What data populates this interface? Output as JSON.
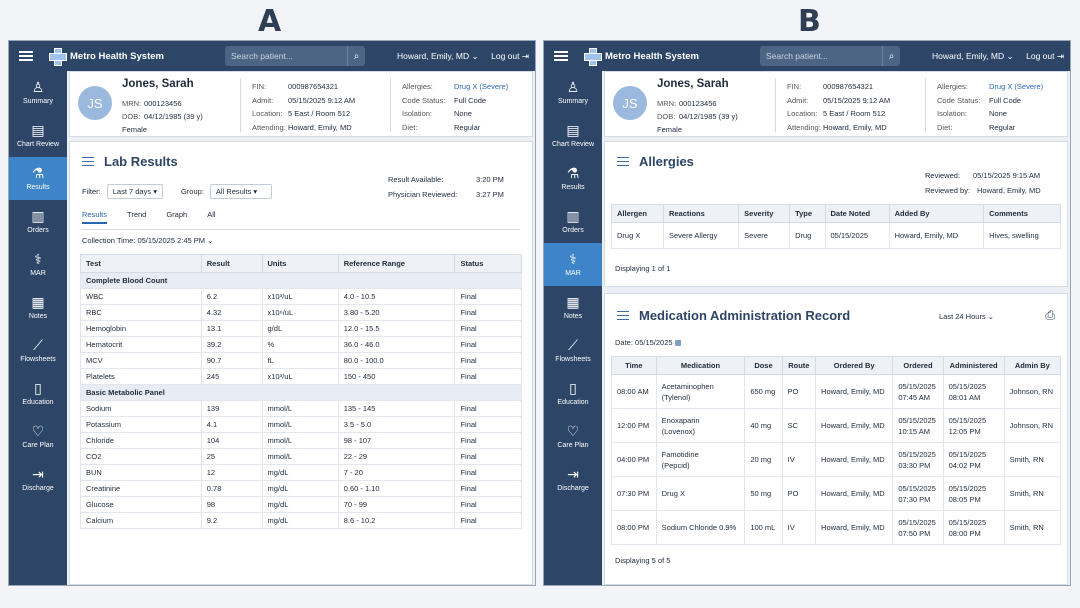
{
  "labels": {
    "a": "A",
    "b": "B"
  },
  "app": {
    "name": "Metro Health System",
    "search_placeholder": "Search patient...",
    "user": "Howard, Emily, MD",
    "logout": "Log out"
  },
  "nav": [
    {
      "label": "Summary",
      "icon": "person-icon"
    },
    {
      "label": "Chart Review",
      "icon": "document-icon"
    },
    {
      "label": "Results",
      "icon": "flask-icon"
    },
    {
      "label": "Orders",
      "icon": "clipboard-icon"
    },
    {
      "label": "MAR",
      "icon": "medication-icon"
    },
    {
      "label": "Notes",
      "icon": "note-icon"
    },
    {
      "label": "Flowsheets",
      "icon": "chart-line-icon"
    },
    {
      "label": "Education",
      "icon": "book-icon"
    },
    {
      "label": "Care Plan",
      "icon": "heart-icon"
    },
    {
      "label": "Discharge",
      "icon": "exit-icon"
    }
  ],
  "patient": {
    "initials": "JS",
    "name": "Jones, Sarah",
    "mrn_label": "MRN:",
    "mrn": "000123456",
    "dob_label": "DOB:",
    "dob": "04/12/1985 (39 y)",
    "sex": "Female",
    "fin_label": "FIN:",
    "fin": "000987654321",
    "admit_label": "Admit:",
    "admit": "05/15/2025 9:12 AM",
    "location_label": "Location:",
    "location": "5 East / Room 512",
    "attending_label": "Attending:",
    "attending": "Howard, Emily, MD",
    "allergies_label": "Allergies:",
    "allergies": "Drug X (Severe)",
    "code_label": "Code Status:",
    "code": "Full Code",
    "isolation_label": "Isolation:",
    "isolation": "None",
    "diet_label": "Diet:",
    "diet": "Regular"
  },
  "lab": {
    "title": "Lab Results",
    "filter_label": "Filter:",
    "filter_value": "Last 7 days",
    "group_label": "Group:",
    "group_value": "All Results",
    "result_available_label": "Result Available:",
    "result_available": "3:20 PM",
    "physician_reviewed_label": "Physician Reviewed:",
    "physician_reviewed": "3:27 PM",
    "tabs": [
      "Results",
      "Trend",
      "Graph",
      "All"
    ],
    "collection_label": "Collection Time:",
    "collection_value": "05/15/2025 2:45 PM",
    "headers": [
      "Test",
      "Result",
      "Units",
      "Reference Range",
      "Status"
    ],
    "groups": [
      {
        "name": "Complete Blood Count",
        "rows": [
          [
            "WBC",
            "6.2",
            "x10³/uL",
            "4.0 - 10.5",
            "Final"
          ],
          [
            "RBC",
            "4.32",
            "x10⁶/uL",
            "3.80 - 5.20",
            "Final"
          ],
          [
            "Hemoglobin",
            "13.1",
            "g/dL",
            "12.0 - 15.5",
            "Final"
          ],
          [
            "Hematocrit",
            "39.2",
            "%",
            "36.0 - 46.0",
            "Final"
          ],
          [
            "MCV",
            "90.7",
            "fL",
            "80.0 - 100.0",
            "Final"
          ],
          [
            "Platelets",
            "245",
            "x10³/uL",
            "150 - 450",
            "Final"
          ]
        ]
      },
      {
        "name": "Basic Metabolic Panel",
        "rows": [
          [
            "Sodium",
            "139",
            "mmol/L",
            "135 - 145",
            "Final"
          ],
          [
            "Potassium",
            "4.1",
            "mmol/L",
            "3.5 - 5.0",
            "Final"
          ],
          [
            "Chloride",
            "104",
            "mmol/L",
            "98 - 107",
            "Final"
          ],
          [
            "CO2",
            "25",
            "mmol/L",
            "22 - 29",
            "Final"
          ],
          [
            "BUN",
            "12",
            "mg/dL",
            "7 - 20",
            "Final"
          ],
          [
            "Creatinine",
            "0.78",
            "mg/dL",
            "0.60 - 1.10",
            "Final"
          ],
          [
            "Glucose",
            "98",
            "mg/dL",
            "70 - 99",
            "Final"
          ],
          [
            "Calcium",
            "9.2",
            "mg/dL",
            "8.6 - 10.2",
            "Final"
          ]
        ]
      }
    ]
  },
  "allergy": {
    "title": "Allergies",
    "reviewed_label": "Reviewed:",
    "reviewed": "05/15/2025 9:15 AM",
    "reviewed_by_label": "Reviewed by:",
    "reviewed_by": "Howard, Emily, MD",
    "headers": [
      "Allergen",
      "Reactions",
      "Severity",
      "Type",
      "Date Noted",
      "Added By",
      "Comments"
    ],
    "rows": [
      [
        "Drug X",
        "Severe Allergy",
        "Severe",
        "Drug",
        "05/15/2025",
        "Howard, Emily, MD",
        "Hives, swelling"
      ]
    ],
    "footer": "Displaying 1 of 1"
  },
  "mar": {
    "title": "Medication Administration Record",
    "range": "Last 24 Hours",
    "date_label": "Date:",
    "date": "05/15/2025",
    "headers": [
      "Time",
      "Medication",
      "Dose",
      "Route",
      "Ordered By",
      "Ordered",
      "Administered",
      "Admin By"
    ],
    "rows": [
      [
        "08:00 AM",
        "Acetaminophen\n(Tylenol)",
        "650 mg",
        "PO",
        "Howard, Emily, MD",
        "05/15/2025\n07:45 AM",
        "05/15/2025\n08:01 AM",
        "Johnson, RN"
      ],
      [
        "12:00 PM",
        "Enoxaparin\n(Lovenox)",
        "40 mg",
        "SC",
        "Howard, Emily, MD",
        "05/15/2025\n10:15 AM",
        "05/15/2025\n12:05 PM",
        "Johnson, RN"
      ],
      [
        "04:00 PM",
        "Famotidine\n(Pepcid)",
        "20 mg",
        "IV",
        "Howard, Emily, MD",
        "05/15/2025\n03:30 PM",
        "05/15/2025\n04:02 PM",
        "Smith, RN"
      ],
      [
        "07:30 PM",
        "Drug X",
        "50 mg",
        "PO",
        "Howard, Emily, MD",
        "05/15/2025\n07:30 PM",
        "05/15/2025\n08:05 PM",
        "Smith, RN"
      ],
      [
        "08:00 PM",
        "Sodium Chloride 0.9%",
        "100 mL",
        "IV",
        "Howard, Emily, MD",
        "05/15/2025\n07:50 PM",
        "05/15/2025\n08:00 PM",
        "Smith, RN"
      ]
    ],
    "footer": "Displaying 5 of 5"
  }
}
